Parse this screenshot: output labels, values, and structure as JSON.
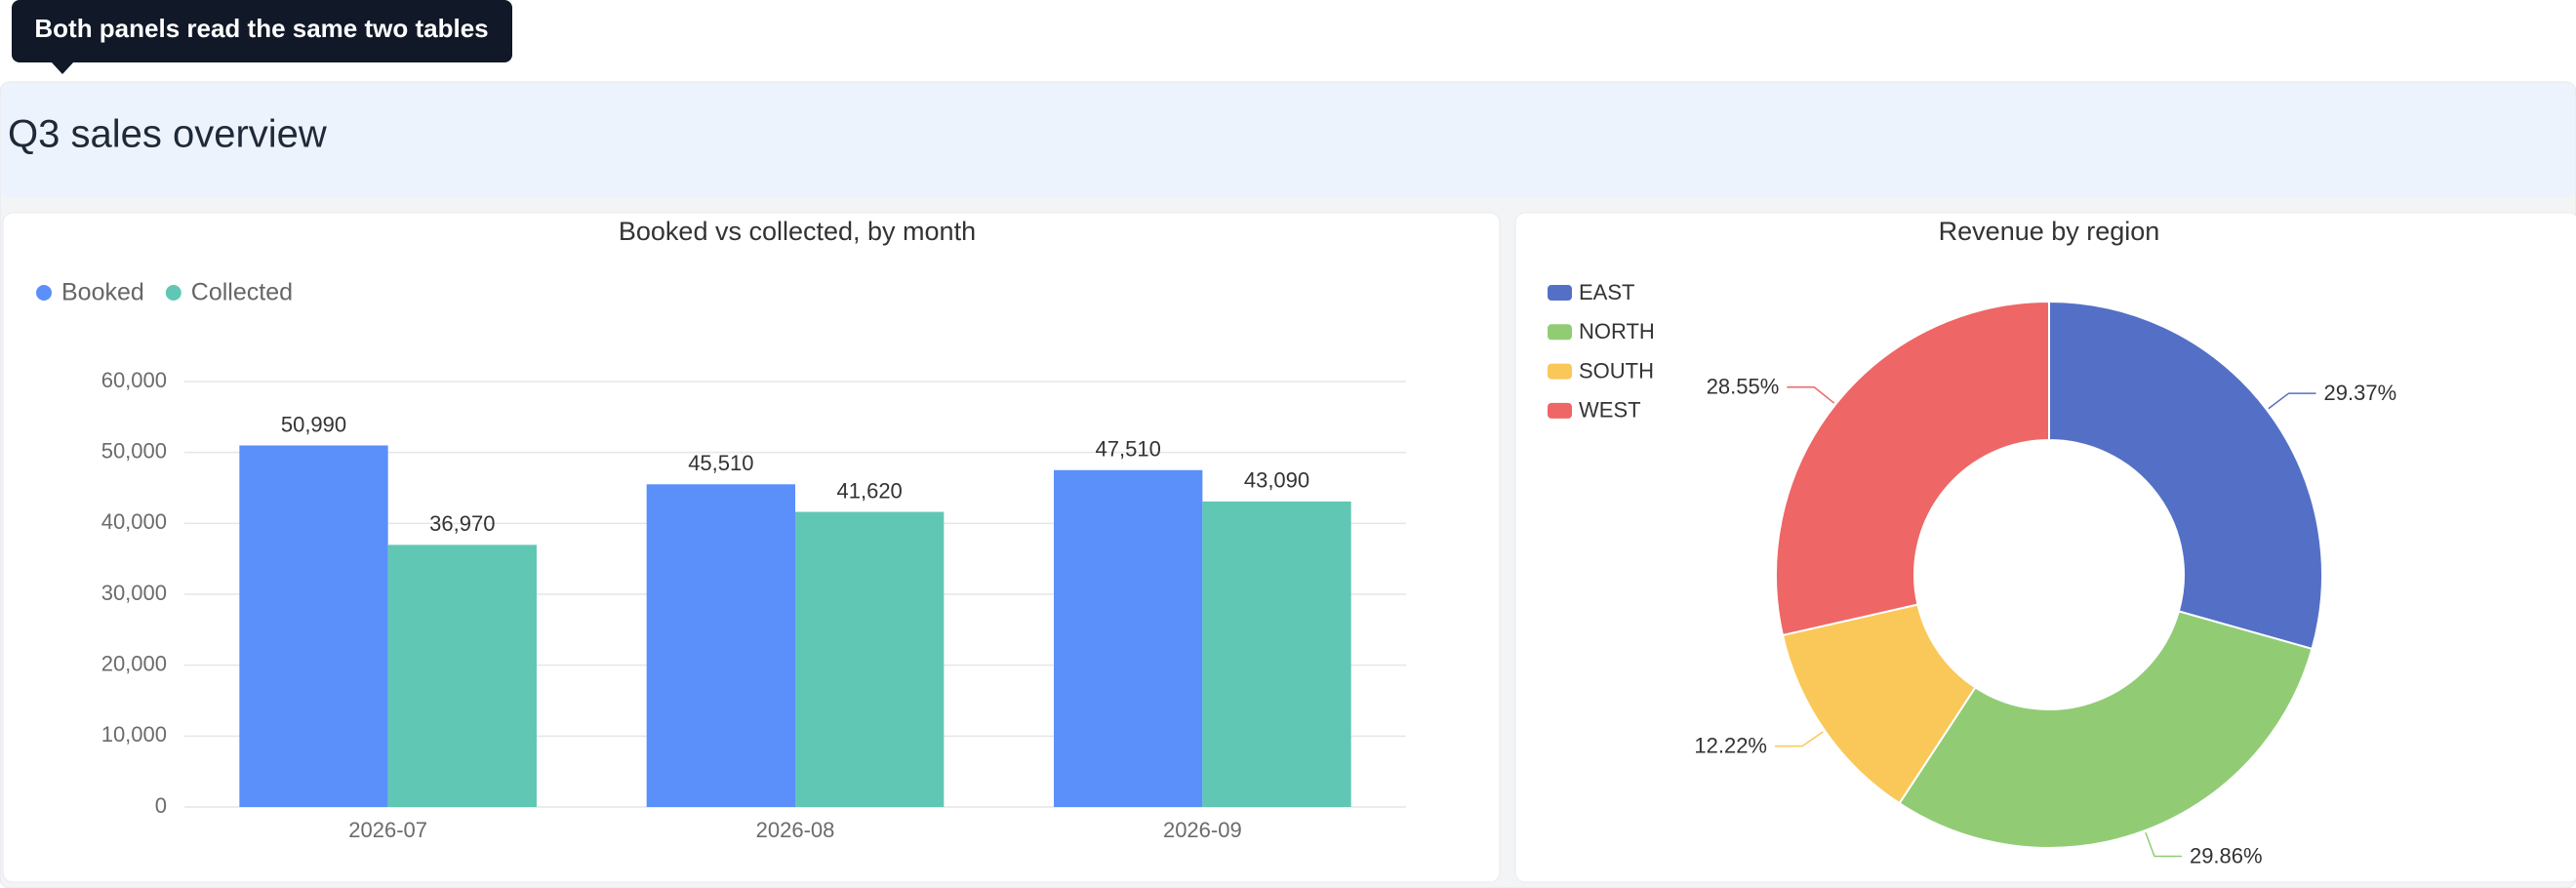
{
  "tooltip": "Both panels read the same two tables",
  "header": {
    "title": "Q3 sales overview"
  },
  "chart_data": [
    {
      "type": "bar",
      "title": "Booked vs collected, by month",
      "categories": [
        "2026-07",
        "2026-08",
        "2026-09"
      ],
      "series": [
        {
          "name": "Booked",
          "color": "#5b8ff9",
          "values": [
            50990,
            45510,
            47510
          ],
          "value_labels": [
            "50,990",
            "45,510",
            "47,510"
          ]
        },
        {
          "name": "Collected",
          "color": "#61c7b5",
          "values": [
            36970,
            41620,
            43090
          ],
          "value_labels": [
            "36,970",
            "41,620",
            "43,090"
          ]
        }
      ],
      "ylim": [
        0,
        60000
      ],
      "yticks": [
        0,
        {
          "value": 10000,
          "label": "10,000"
        },
        {
          "value": 20000,
          "label": "20,000"
        },
        {
          "value": 30000,
          "label": "30,000"
        },
        {
          "value": 40000,
          "label": "40,000"
        },
        {
          "value": 50000,
          "label": "50,000"
        },
        {
          "value": 60000,
          "label": "60,000"
        }
      ],
      "grid": true,
      "legend": "top-left"
    },
    {
      "type": "pie",
      "title": "Revenue by region",
      "categories": [
        "EAST",
        "NORTH",
        "SOUTH",
        "WEST"
      ],
      "values": [
        29.37,
        29.86,
        12.22,
        28.55
      ],
      "value_labels": [
        "29.37%",
        "29.86%",
        "12.22%",
        "28.55%"
      ],
      "colors": [
        "#5470c6",
        "#91cc75",
        "#fac858",
        "#ee6666"
      ],
      "donut": true,
      "legend": "top-left"
    }
  ]
}
